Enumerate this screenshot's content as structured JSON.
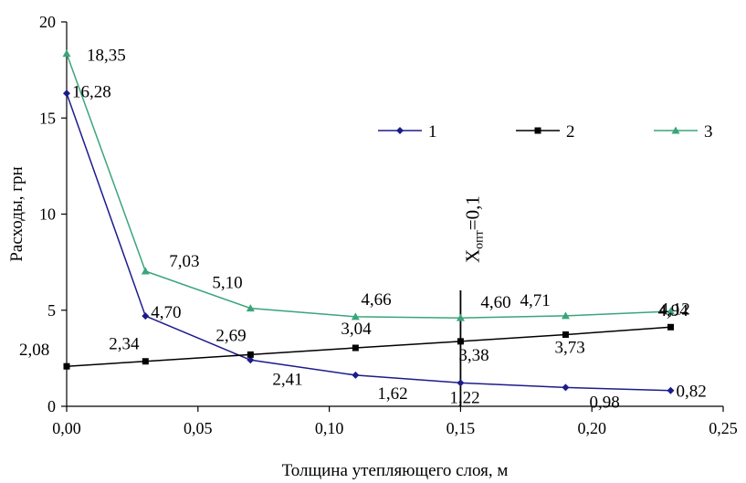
{
  "chart_data": {
    "type": "line",
    "title": "",
    "xlabel": "Толщина утепляющего слоя, м",
    "ylabel": "Расходы, грн",
    "xlim": [
      0,
      0.25
    ],
    "ylim": [
      0,
      20
    ],
    "x_ticks": [
      "0,00",
      "0,05",
      "0,10",
      "0,15",
      "0,20",
      "0,25"
    ],
    "y_ticks": [
      "0",
      "5",
      "10",
      "15",
      "20"
    ],
    "grid": false,
    "legend_position": "top-right",
    "x": [
      0.0,
      0.03,
      0.07,
      0.11,
      0.15,
      0.19,
      0.23
    ],
    "series": [
      {
        "name": "1",
        "color": "#1c1c8c",
        "marker": "diamond",
        "values": [
          16.28,
          4.7,
          2.41,
          1.62,
          1.22,
          0.98,
          0.82
        ],
        "labels": [
          "16,28",
          "4,70",
          "2,41",
          "1,62",
          "1,22",
          "0,98",
          "0,82"
        ]
      },
      {
        "name": "2",
        "color": "#000000",
        "marker": "square",
        "values": [
          2.08,
          2.34,
          2.69,
          3.04,
          3.38,
          3.73,
          4.12
        ],
        "labels": [
          "2,08",
          "2,34",
          "2,69",
          "3,04",
          "3,38",
          "3,73",
          "4,12"
        ]
      },
      {
        "name": "3",
        "color": "#3aa57a",
        "marker": "triangle",
        "values": [
          18.35,
          7.03,
          5.1,
          4.66,
          4.6,
          4.71,
          4.94
        ],
        "labels": [
          "18,35",
          "7,03",
          "5,10",
          "4,66",
          "4,60",
          "4,71",
          "4,94"
        ]
      }
    ],
    "annotation": {
      "x": 0.15,
      "text_main": "X",
      "text_sub": "опт",
      "text_tail": "=0,1"
    }
  }
}
